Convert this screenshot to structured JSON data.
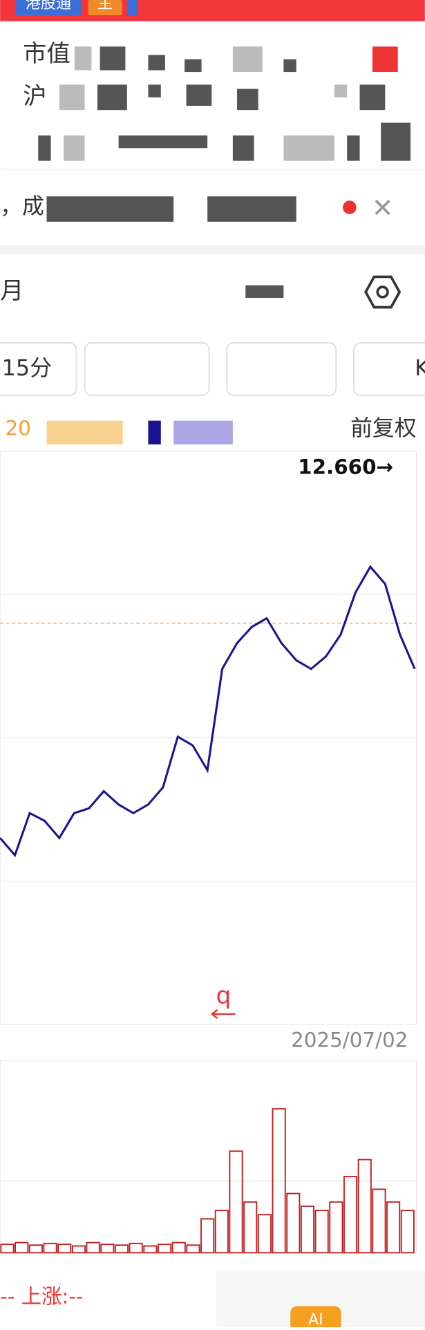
{
  "header": {
    "tags": [
      "港股通",
      "主"
    ],
    "row1_label": "市值",
    "row2_label": "沪",
    "notice_label": "，成"
  },
  "toolbar": {
    "period": "月",
    "tab_first": "15分",
    "tab_last": "K"
  },
  "chart_data": {
    "type": "line",
    "legend_prefix": "20",
    "adjust_mode": "前复权",
    "high_label": "12.660→",
    "end_date": "2025/07/02",
    "marker": "q",
    "ylim": [
      6.8,
      12.8
    ],
    "dashed_level": 11.0,
    "series": [
      {
        "color": "#1a1490",
        "values": [
          8.75,
          8.57,
          9.01,
          8.93,
          8.75,
          9.01,
          9.06,
          9.24,
          9.1,
          9.01,
          9.1,
          9.28,
          9.81,
          9.72,
          9.46,
          10.52,
          10.79,
          10.96,
          11.05,
          10.79,
          10.61,
          10.52,
          10.65,
          10.88,
          11.32,
          11.59,
          11.41,
          10.88,
          10.52
        ]
      }
    ],
    "volume": {
      "ylim": [
        0,
        227
      ],
      "color": "#c01818",
      "values": [
        10,
        12,
        9,
        11,
        10,
        8,
        12,
        10,
        9,
        11,
        8,
        10,
        12,
        9,
        40,
        50,
        120,
        60,
        45,
        170,
        70,
        55,
        50,
        60,
        90,
        110,
        75,
        60,
        50
      ]
    },
    "footer": {
      "change_label": "-- 上涨:--",
      "ai_button": "AI"
    }
  }
}
